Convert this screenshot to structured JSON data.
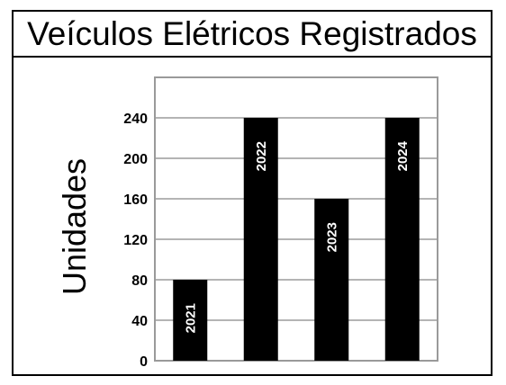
{
  "chart_data": {
    "type": "bar",
    "title": "Veículos Elétricos Registrados",
    "xlabel": "",
    "ylabel": "Unidades",
    "categories": [
      "2021",
      "2022",
      "2023",
      "2024"
    ],
    "values": [
      80,
      240,
      160,
      240
    ],
    "ylim": [
      0,
      280
    ],
    "yticks": [
      0,
      40,
      80,
      120,
      160,
      200,
      240
    ],
    "grid": true,
    "legend": "none",
    "data_labels": "category inside bar, rotated vertical",
    "colors": {
      "bar": "#000000",
      "bar_label": "#ffffff",
      "grid": "#b4b4b4",
      "plot_border": "#9a9a9a",
      "text": "#000000"
    }
  }
}
